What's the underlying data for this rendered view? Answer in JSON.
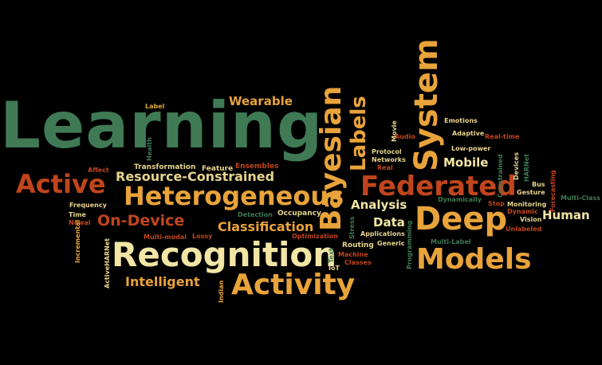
{
  "palette": {
    "green": "#3f7a55",
    "orange": "#e8a33a",
    "cream": "#f2e6a6",
    "rust": "#c0451c",
    "gold": "#d9a631",
    "sand": "#e6d48e",
    "tan": "#d8b466",
    "background": "#000000"
  },
  "words": {
    "learning": "Learning",
    "heterogeneous": "Heterogeneous",
    "recognition": "Recognition",
    "activity": "Activity",
    "deep": "Deep",
    "models": "Models",
    "federated": "Federated",
    "system": "System",
    "bayesian": "Bayesian",
    "labels": "Labels",
    "active": "Active",
    "resource_constrained": "Resource-Constrained",
    "on_device": "On-Device",
    "classification": "Classification",
    "wearable": "Wearable",
    "intelligent": "Intelligent",
    "analysis": "Analysis",
    "data": "Data",
    "mobile": "Mobile",
    "human": "Human",
    "label": "Label",
    "health": "Health",
    "affect": "Affect",
    "transformation": "Transformation",
    "feature": "Feature",
    "ensembles": "Ensembles",
    "frequency": "Frequency",
    "time": "Time",
    "newal": "Newal",
    "incremental": "Incremental",
    "active_harnet": "ActiveHARNet",
    "multi_modal": "Multi-modal",
    "lossy": "Lossy",
    "detection": "Detection",
    "occupancy": "Occupancy",
    "optimization": "Optimization",
    "routing": "Routing",
    "machine": "Machine",
    "classes": "Classes",
    "iot": "IoT",
    "text": "Text",
    "stress": "Stress",
    "indian": "Indian",
    "applications": "Applications",
    "generic": "Generic",
    "programming": "Programming",
    "audio": "Audio",
    "movie": "Movie",
    "protocol": "Protocol",
    "networks": "Networks",
    "real": "Real",
    "emotions": "Emotions",
    "adaptive": "Adaptive",
    "real_time": "Real-time",
    "low_power": "Low-power",
    "constrained": "Constrained",
    "devices": "Devices",
    "harnet": "HARNet",
    "forecasting": "Forecasting",
    "bus": "Bus",
    "gesture": "Gesture",
    "multi_class": "Multi-Class",
    "dynamically": "Dynamically",
    "stop": "Stop",
    "monitoring": "Monitoring",
    "dynamic": "Dynamic",
    "vision": "Vision",
    "unlabeled": "Unlabeled",
    "multi_label": "Multi-Label"
  }
}
